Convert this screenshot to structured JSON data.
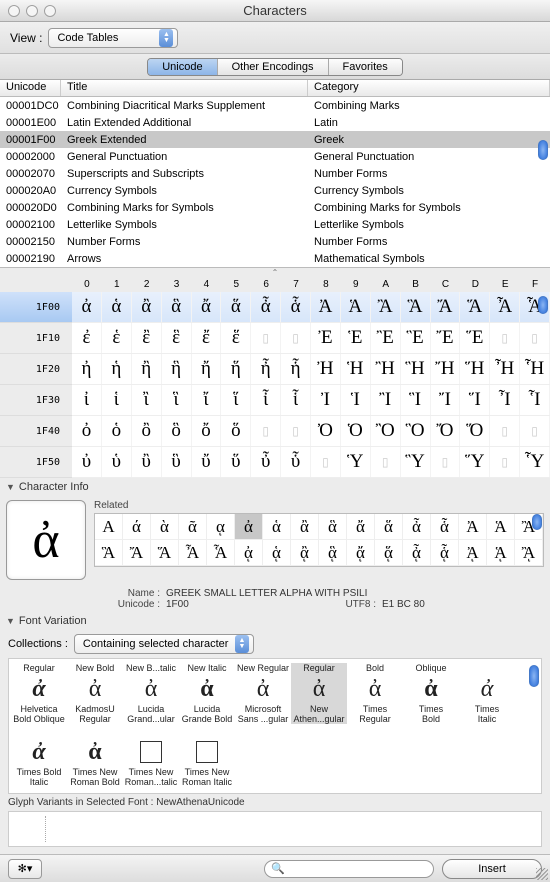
{
  "window": {
    "title": "Characters"
  },
  "toolbar": {
    "view_label": "View :",
    "view_select": "Code Tables"
  },
  "tabs": {
    "items": [
      "Unicode",
      "Other Encodings",
      "Favorites"
    ],
    "active": 0
  },
  "table": {
    "headers": {
      "unicode": "Unicode",
      "title": "Title",
      "category": "Category"
    },
    "selected_index": 2,
    "rows": [
      {
        "u": "00001DC0",
        "t": "Combining Diacritical Marks Supplement",
        "c": "Combining Marks"
      },
      {
        "u": "00001E00",
        "t": "Latin Extended Additional",
        "c": "Latin"
      },
      {
        "u": "00001F00",
        "t": "Greek Extended",
        "c": "Greek"
      },
      {
        "u": "00002000",
        "t": "General Punctuation",
        "c": "General Punctuation"
      },
      {
        "u": "00002070",
        "t": "Superscripts and Subscripts",
        "c": "Number Forms"
      },
      {
        "u": "000020A0",
        "t": "Currency Symbols",
        "c": "Currency Symbols"
      },
      {
        "u": "000020D0",
        "t": "Combining Marks for Symbols",
        "c": "Combining Marks for Symbols"
      },
      {
        "u": "00002100",
        "t": "Letterlike Symbols",
        "c": "Letterlike Symbols"
      },
      {
        "u": "00002150",
        "t": "Number Forms",
        "c": "Number Forms"
      },
      {
        "u": "00002190",
        "t": "Arrows",
        "c": "Mathematical Symbols"
      }
    ]
  },
  "grid": {
    "cols": [
      "0",
      "1",
      "2",
      "3",
      "4",
      "5",
      "6",
      "7",
      "8",
      "9",
      "A",
      "B",
      "C",
      "D",
      "E",
      "F"
    ],
    "selected_row": 0,
    "rows": [
      {
        "label": "1F00",
        "cells": [
          "ἀ",
          "ἁ",
          "ἂ",
          "ἃ",
          "ἄ",
          "ἅ",
          "ἆ",
          "ἇ",
          "Ἀ",
          "Ἁ",
          "Ἂ",
          "Ἃ",
          "Ἄ",
          "Ἅ",
          "Ἆ",
          "Ἇ"
        ]
      },
      {
        "label": "1F10",
        "cells": [
          "ἐ",
          "ἑ",
          "ἒ",
          "ἓ",
          "ἔ",
          "ἕ",
          "",
          "",
          "Ἐ",
          "Ἑ",
          "Ἒ",
          "Ἓ",
          "Ἔ",
          "Ἕ",
          "",
          ""
        ]
      },
      {
        "label": "1F20",
        "cells": [
          "ἠ",
          "ἡ",
          "ἢ",
          "ἣ",
          "ἤ",
          "ἥ",
          "ἦ",
          "ἧ",
          "Ἠ",
          "Ἡ",
          "Ἢ",
          "Ἣ",
          "Ἤ",
          "Ἥ",
          "Ἦ",
          "Ἧ"
        ]
      },
      {
        "label": "1F30",
        "cells": [
          "ἰ",
          "ἱ",
          "ἲ",
          "ἳ",
          "ἴ",
          "ἵ",
          "ἶ",
          "ἷ",
          "Ἰ",
          "Ἱ",
          "Ἲ",
          "Ἳ",
          "Ἴ",
          "Ἵ",
          "Ἶ",
          "Ἷ"
        ]
      },
      {
        "label": "1F40",
        "cells": [
          "ὀ",
          "ὁ",
          "ὂ",
          "ὃ",
          "ὄ",
          "ὅ",
          "",
          "",
          "Ὀ",
          "Ὁ",
          "Ὂ",
          "Ὃ",
          "Ὄ",
          "Ὅ",
          "",
          ""
        ]
      },
      {
        "label": "1F50",
        "cells": [
          "ὐ",
          "ὑ",
          "ὒ",
          "ὓ",
          "ὔ",
          "ὕ",
          "ὖ",
          "ὗ",
          "",
          "Ὑ",
          "",
          "Ὓ",
          "",
          "Ὕ",
          "",
          "Ὗ"
        ]
      }
    ]
  },
  "charinfo": {
    "header": "Character Info",
    "glyph": "ἀ",
    "related_label": "Related",
    "related": [
      [
        "Α",
        "ά",
        "ὰ",
        "ᾶ",
        "ᾳ",
        "ἀ",
        "ἁ",
        "ἂ",
        "ἃ",
        "ἄ",
        "ἅ",
        "ἆ",
        "ἇ",
        "Ἀ",
        "Ἁ",
        "Ἂ"
      ],
      [
        "Ἃ",
        "Ἄ",
        "Ἅ",
        "Ἆ",
        "Ἇ",
        "ᾀ",
        "ᾁ",
        "ᾂ",
        "ᾃ",
        "ᾄ",
        "ᾅ",
        "ᾆ",
        "ᾇ",
        "ᾈ",
        "ᾉ",
        "ᾊ"
      ]
    ],
    "related_selected": {
      "row": 0,
      "col": 5
    },
    "name_label": "Name :",
    "name": "GREEK SMALL LETTER ALPHA WITH PSILI",
    "unicode_label": "Unicode :",
    "unicode": "1F00",
    "utf8_label": "UTF8 :",
    "utf8": "E1 BC 80"
  },
  "fontvar": {
    "header": "Font Variation",
    "collections_label": "Collections :",
    "collections_select": "Containing selected character",
    "selected_index": 5,
    "items": [
      {
        "style": "Regular",
        "glyph": "ἀ",
        "name1": "Helvetica",
        "name2": "Bold Oblique",
        "bold": true,
        "italic": true
      },
      {
        "style": "New Bold",
        "glyph": "ἀ",
        "name1": "KadmosU",
        "name2": "Regular"
      },
      {
        "style": "New B...talic",
        "glyph": "ἀ",
        "name1": "Lucida",
        "name2": "Grand...ular"
      },
      {
        "style": "New Italic",
        "glyph": "ἀ",
        "name1": "Lucida",
        "name2": "Grande Bold",
        "bold": true
      },
      {
        "style": "New Regular",
        "glyph": "ἀ",
        "name1": "Microsoft",
        "name2": "Sans ...gular"
      },
      {
        "style": "Regular",
        "glyph": "ἀ",
        "name1": "New",
        "name2": "Athen...gular"
      },
      {
        "style": "Bold",
        "glyph": "ἀ",
        "name1": "Times",
        "name2": "Regular"
      },
      {
        "style": "Oblique",
        "glyph": "ἀ",
        "name1": "Times",
        "name2": "Bold",
        "bold": true
      },
      {
        "style": "",
        "glyph": "ἀ",
        "name1": "Times",
        "name2": "Italic",
        "italic": true
      },
      {
        "style": "",
        "glyph": "ἀ",
        "name1": "Times Bold",
        "name2": "Italic",
        "bold": true,
        "italic": true
      },
      {
        "style": "",
        "glyph": "ἀ",
        "name1": "Times New",
        "name2": "Roman Bold",
        "bold": true
      },
      {
        "style": "",
        "box": true,
        "name1": "Times New",
        "name2": "Roman...talic"
      },
      {
        "style": "",
        "box": true,
        "name1": "Times New",
        "name2": "Roman Italic"
      }
    ]
  },
  "glyphvar": {
    "label_prefix": "Glyph Variants in Selected Font :",
    "font_name": "NewAthenaUnicode"
  },
  "bottom": {
    "search_placeholder": "",
    "insert_label": "Insert"
  }
}
